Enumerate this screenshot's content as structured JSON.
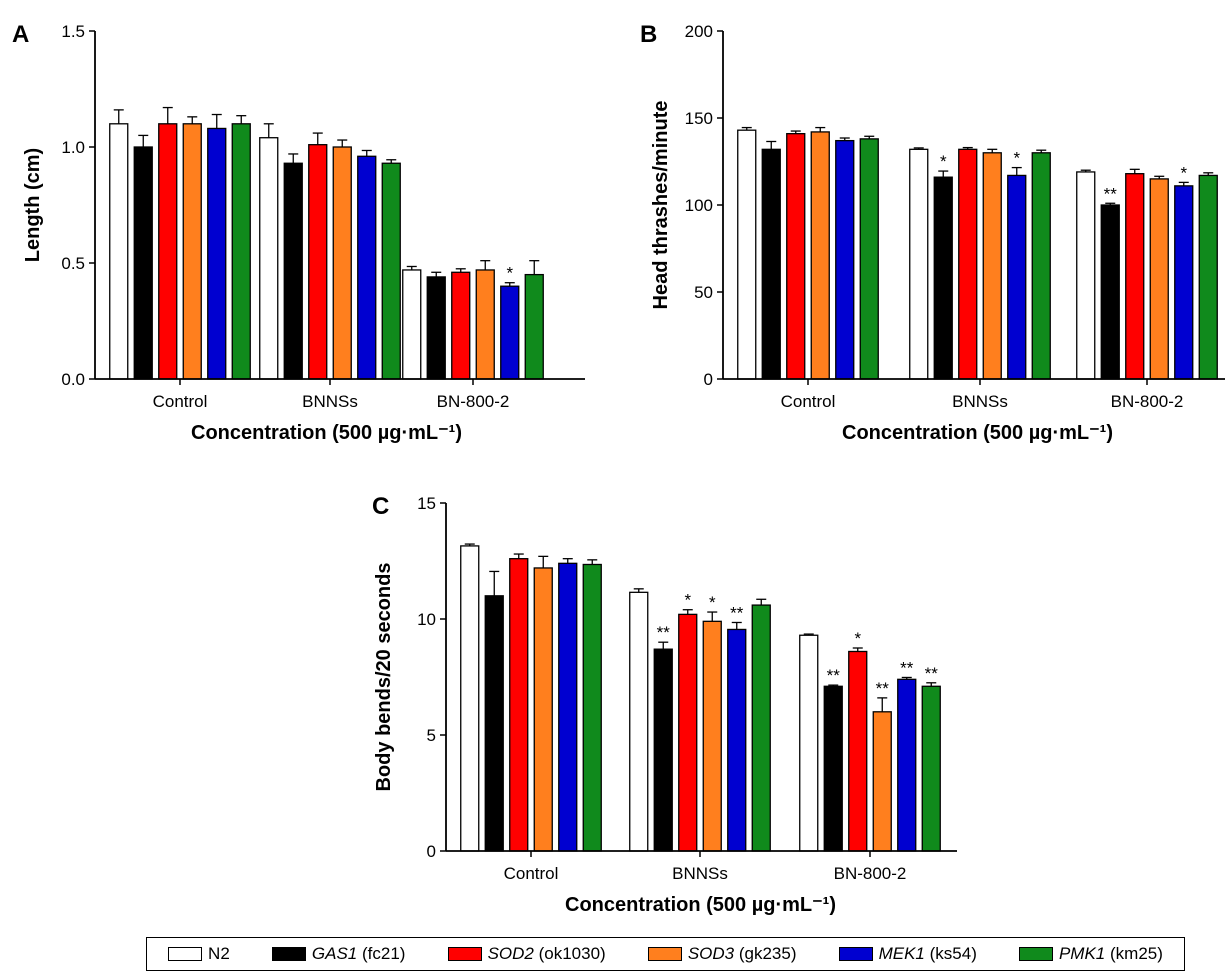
{
  "chart_data": [
    {
      "panel": "A",
      "type": "bar",
      "ylabel": "Length (cm)",
      "xlabel": "Concentration (500 µg·mL⁻¹)",
      "ylim": [
        0,
        1.5
      ],
      "yticks": [
        "0.0",
        "0.5",
        "1.0",
        "1.5"
      ],
      "categories": [
        "Control",
        "BNNSs",
        "BN-800-2"
      ],
      "series": [
        {
          "name": "N2",
          "values": [
            1.1,
            1.04,
            0.47
          ],
          "errors": [
            0.06,
            0.06,
            0.015
          ]
        },
        {
          "name": "GAS1 (fc21)",
          "values": [
            1.0,
            0.93,
            0.44
          ],
          "errors": [
            0.05,
            0.04,
            0.02
          ]
        },
        {
          "name": "SOD2 (ok1030)",
          "values": [
            1.1,
            1.01,
            0.46
          ],
          "errors": [
            0.07,
            0.05,
            0.015
          ]
        },
        {
          "name": "SOD3 (gk235)",
          "values": [
            1.1,
            1.0,
            0.47
          ],
          "errors": [
            0.03,
            0.03,
            0.04
          ]
        },
        {
          "name": "MEK1 (ks54)",
          "values": [
            1.08,
            0.96,
            0.4
          ],
          "errors": [
            0.06,
            0.025,
            0.015
          ]
        },
        {
          "name": "PMK1 (km25)",
          "values": [
            1.1,
            0.93,
            0.45
          ],
          "errors": [
            0.035,
            0.015,
            0.06
          ]
        }
      ],
      "annotations": [
        {
          "category": "BN-800-2",
          "series": "MEK1 (ks54)",
          "text": "*"
        }
      ]
    },
    {
      "panel": "B",
      "type": "bar",
      "ylabel": "Head thrashes/minute",
      "xlabel": "Concentration (500 µg·mL⁻¹)",
      "ylim": [
        0,
        200
      ],
      "yticks": [
        "0",
        "50",
        "100",
        "150",
        "200"
      ],
      "categories": [
        "Control",
        "BNNSs",
        "BN-800-2"
      ],
      "series": [
        {
          "name": "N2",
          "values": [
            143,
            132,
            119
          ],
          "errors": [
            1.5,
            0.8,
            1.0
          ]
        },
        {
          "name": "GAS1 (fc21)",
          "values": [
            132,
            116,
            100
          ],
          "errors": [
            4.5,
            3.5,
            1.0
          ]
        },
        {
          "name": "SOD2 (ok1030)",
          "values": [
            141,
            132,
            118
          ],
          "errors": [
            1.5,
            1.0,
            2.5
          ]
        },
        {
          "name": "SOD3 (gk235)",
          "values": [
            142,
            130,
            115
          ],
          "errors": [
            2.5,
            2.0,
            1.5
          ]
        },
        {
          "name": "MEK1 (ks54)",
          "values": [
            137,
            117,
            111
          ],
          "errors": [
            1.5,
            4.5,
            2.0
          ]
        },
        {
          "name": "PMK1 (km25)",
          "values": [
            138,
            130,
            117
          ],
          "errors": [
            1.5,
            1.5,
            1.5
          ]
        }
      ],
      "annotations": [
        {
          "category": "BNNSs",
          "series": "GAS1 (fc21)",
          "text": "*"
        },
        {
          "category": "BNNSs",
          "series": "MEK1 (ks54)",
          "text": "*"
        },
        {
          "category": "BN-800-2",
          "series": "GAS1 (fc21)",
          "text": "**"
        },
        {
          "category": "BN-800-2",
          "series": "MEK1 (ks54)",
          "text": "*"
        }
      ]
    },
    {
      "panel": "C",
      "type": "bar",
      "ylabel": "Body bends/20 seconds",
      "xlabel": "Concentration (500 µg·mL⁻¹)",
      "ylim": [
        0,
        15
      ],
      "yticks": [
        "0",
        "5",
        "10",
        "15"
      ],
      "categories": [
        "Control",
        "BNNSs",
        "BN-800-2"
      ],
      "series": [
        {
          "name": "N2",
          "values": [
            13.15,
            11.15,
            9.3
          ],
          "errors": [
            0.08,
            0.15,
            0.05
          ]
        },
        {
          "name": "GAS1 (fc21)",
          "values": [
            11.0,
            8.7,
            7.1
          ],
          "errors": [
            1.05,
            0.3,
            0.05
          ]
        },
        {
          "name": "SOD2 (ok1030)",
          "values": [
            12.6,
            10.2,
            8.6
          ],
          "errors": [
            0.2,
            0.2,
            0.15
          ]
        },
        {
          "name": "SOD3 (gk235)",
          "values": [
            12.2,
            9.9,
            6.0
          ],
          "errors": [
            0.5,
            0.4,
            0.6
          ]
        },
        {
          "name": "MEK1 (ks54)",
          "values": [
            12.4,
            9.55,
            7.4
          ],
          "errors": [
            0.2,
            0.3,
            0.08
          ]
        },
        {
          "name": "PMK1 (km25)",
          "values": [
            12.35,
            10.6,
            7.1
          ],
          "errors": [
            0.2,
            0.25,
            0.15
          ]
        }
      ],
      "annotations": [
        {
          "category": "BNNSs",
          "series": "GAS1 (fc21)",
          "text": "**"
        },
        {
          "category": "BNNSs",
          "series": "SOD2 (ok1030)",
          "text": "*"
        },
        {
          "category": "BNNSs",
          "series": "SOD3 (gk235)",
          "text": "*"
        },
        {
          "category": "BNNSs",
          "series": "MEK1 (ks54)",
          "text": "**"
        },
        {
          "category": "BN-800-2",
          "series": "GAS1 (fc21)",
          "text": "**"
        },
        {
          "category": "BN-800-2",
          "series": "SOD2 (ok1030)",
          "text": "*"
        },
        {
          "category": "BN-800-2",
          "series": "SOD3 (gk235)",
          "text": "**"
        },
        {
          "category": "BN-800-2",
          "series": "MEK1 (ks54)",
          "text": "**"
        },
        {
          "category": "BN-800-2",
          "series": "PMK1 (km25)",
          "text": "**"
        }
      ]
    }
  ],
  "legend": {
    "entries": [
      {
        "gene": "",
        "strain": "N2",
        "color": "#ffffff"
      },
      {
        "gene": "GAS1",
        "strain": "(fc21)",
        "color": "#000000"
      },
      {
        "gene": "SOD2",
        "strain": "(ok1030)",
        "color": "#ff0000"
      },
      {
        "gene": "SOD3",
        "strain": "(gk235)",
        "color": "#ff7f1e"
      },
      {
        "gene": "MEK1",
        "strain": "(ks54)",
        "color": "#0000d0"
      },
      {
        "gene": "PMK1",
        "strain": "(km25)",
        "color": "#108a1c"
      }
    ]
  }
}
